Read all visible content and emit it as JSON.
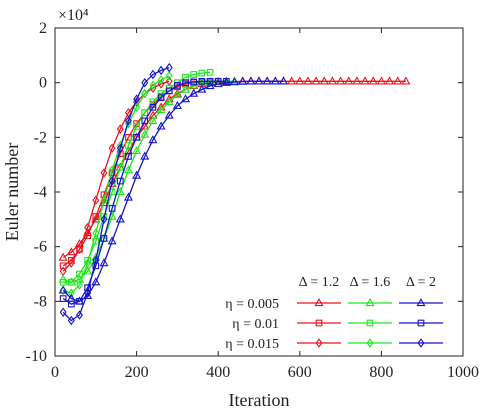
{
  "chart_data": {
    "type": "line",
    "xlabel": "Iteration",
    "ylabel": "Euler number",
    "exponent_label": "×10⁴",
    "xlim": [
      0,
      1000
    ],
    "ylim": [
      -10,
      2
    ],
    "xticks": [
      0,
      200,
      400,
      600,
      800,
      1000
    ],
    "yticks": [
      -10,
      -8,
      -6,
      -4,
      -2,
      0,
      2
    ],
    "y_unit_note": "values in units of 10^4",
    "grid": false,
    "legend": {
      "placement": "bottom-right",
      "column_headers": [
        "Δ = 1.2",
        "Δ = 1.6",
        "Δ = 2"
      ],
      "row_labels": [
        "η = 0.005",
        "η = 0.01",
        "η = 0.015"
      ]
    },
    "colors": {
      "delta_1.2": "#e8141e",
      "delta_1.6": "#1ee61e",
      "delta_2": "#1414c8"
    },
    "markers": {
      "eta_0.005": "triangle",
      "eta_0.01": "square",
      "eta_0.015": "diamond"
    },
    "series": [
      {
        "delta": "1.2",
        "eta": "0.005",
        "x": [
          20,
          40,
          60,
          80,
          100,
          120,
          140,
          160,
          180,
          200,
          220,
          240,
          260,
          280,
          300,
          320,
          340,
          360,
          380,
          400,
          420,
          440,
          460,
          480,
          500,
          520,
          540,
          560,
          580,
          600,
          620,
          640,
          660,
          680,
          700,
          720,
          740,
          760,
          780,
          800,
          820,
          840,
          860
        ],
        "y": [
          -6.4,
          -6.2,
          -5.9,
          -5.5,
          -5.0,
          -4.4,
          -3.7,
          -3.1,
          -2.5,
          -2.0,
          -1.6,
          -1.2,
          -0.9,
          -0.6,
          -0.4,
          -0.25,
          -0.12,
          -0.05,
          0,
          0.02,
          0.03,
          0.04,
          0.05,
          0.05,
          0.05,
          0.05,
          0.05,
          0.05,
          0.05,
          0.05,
          0.05,
          0.05,
          0.05,
          0.05,
          0.05,
          0.05,
          0.05,
          0.05,
          0.05,
          0.05,
          0.05,
          0.05,
          0.05
        ]
      },
      {
        "delta": "1.2",
        "eta": "0.01",
        "x": [
          20,
          40,
          60,
          80,
          100,
          120,
          140,
          160,
          180,
          200,
          220,
          240,
          260,
          280,
          300,
          320,
          340,
          360,
          380,
          400
        ],
        "y": [
          -6.7,
          -6.5,
          -6.1,
          -5.6,
          -4.9,
          -4.1,
          -3.3,
          -2.6,
          -2.0,
          -1.5,
          -1.1,
          -0.8,
          -0.5,
          -0.3,
          -0.15,
          -0.05,
          0,
          0.02,
          0.03,
          0.05
        ]
      },
      {
        "delta": "1.2",
        "eta": "0.015",
        "x": [
          20,
          40,
          60,
          80,
          100,
          120,
          140,
          160,
          180,
          200,
          220,
          240,
          260,
          280
        ],
        "y": [
          -6.9,
          -6.6,
          -6.1,
          -5.3,
          -4.3,
          -3.3,
          -2.4,
          -1.7,
          -1.1,
          -0.7,
          -0.4,
          -0.2,
          -0.05,
          0.05
        ]
      },
      {
        "delta": "1.6",
        "eta": "0.005",
        "x": [
          20,
          40,
          60,
          80,
          100,
          120,
          140,
          160,
          180,
          200,
          220,
          240,
          260,
          280,
          300,
          320,
          340,
          360,
          380,
          400,
          420,
          440
        ],
        "y": [
          -7.2,
          -7.3,
          -7.2,
          -6.9,
          -6.4,
          -5.7,
          -4.9,
          -4.0,
          -3.2,
          -2.5,
          -1.9,
          -1.4,
          -1.0,
          -0.7,
          -0.45,
          -0.25,
          -0.1,
          0,
          0.02,
          0.04,
          0.05,
          0.05
        ]
      },
      {
        "delta": "1.6",
        "eta": "0.01",
        "x": [
          20,
          40,
          60,
          80,
          100,
          120,
          140,
          160,
          180,
          200,
          220,
          240,
          260,
          280,
          300,
          320,
          340,
          360,
          380
        ],
        "y": [
          -7.3,
          -7.3,
          -7.0,
          -6.5,
          -5.8,
          -4.9,
          -4.0,
          -3.1,
          -2.3,
          -1.6,
          -1.1,
          -0.7,
          -0.4,
          -0.2,
          0,
          0.2,
          0.3,
          0.35,
          0.38
        ]
      },
      {
        "delta": "1.6",
        "eta": "0.015",
        "x": [
          20,
          40,
          60,
          80,
          100,
          120,
          140,
          160,
          180,
          200,
          220,
          240,
          260,
          280
        ],
        "y": [
          -7.6,
          -7.7,
          -7.4,
          -6.6,
          -5.5,
          -4.3,
          -3.2,
          -2.3,
          -1.5,
          -0.9,
          -0.4,
          -0.1,
          0.1,
          0.25
        ]
      },
      {
        "delta": "2",
        "eta": "0.005",
        "x": [
          20,
          40,
          60,
          80,
          100,
          120,
          140,
          160,
          180,
          200,
          220,
          240,
          260,
          280,
          300,
          320,
          340,
          360,
          380,
          400,
          420,
          440,
          460,
          480,
          500,
          520,
          540,
          560
        ],
        "y": [
          -7.6,
          -7.9,
          -8.0,
          -7.8,
          -7.3,
          -6.6,
          -5.8,
          -5.0,
          -4.2,
          -3.4,
          -2.7,
          -2.1,
          -1.6,
          -1.2,
          -0.85,
          -0.6,
          -0.4,
          -0.25,
          -0.12,
          -0.05,
          0,
          0.02,
          0.04,
          0.05,
          0.05,
          0.05,
          0.05,
          0.05
        ]
      },
      {
        "delta": "2",
        "eta": "0.01",
        "x": [
          20,
          40,
          60,
          80,
          100,
          120,
          140,
          160,
          180,
          200,
          220,
          240,
          260,
          280,
          300,
          320,
          340,
          360,
          380,
          400,
          420
        ],
        "y": [
          -7.9,
          -8.1,
          -8.0,
          -7.5,
          -6.7,
          -5.7,
          -4.6,
          -3.6,
          -2.7,
          -2.0,
          -1.4,
          -0.9,
          -0.55,
          -0.3,
          -0.1,
          0,
          0.03,
          0.05,
          0.05,
          0.05,
          0.05
        ]
      },
      {
        "delta": "2",
        "eta": "0.015",
        "x": [
          20,
          40,
          60,
          80,
          100,
          120,
          140,
          160,
          180,
          200,
          220,
          240,
          260,
          280
        ],
        "y": [
          -8.4,
          -8.7,
          -8.5,
          -7.7,
          -6.5,
          -5.0,
          -3.6,
          -2.4,
          -1.4,
          -0.6,
          0,
          0.3,
          0.45,
          0.55
        ]
      }
    ]
  }
}
